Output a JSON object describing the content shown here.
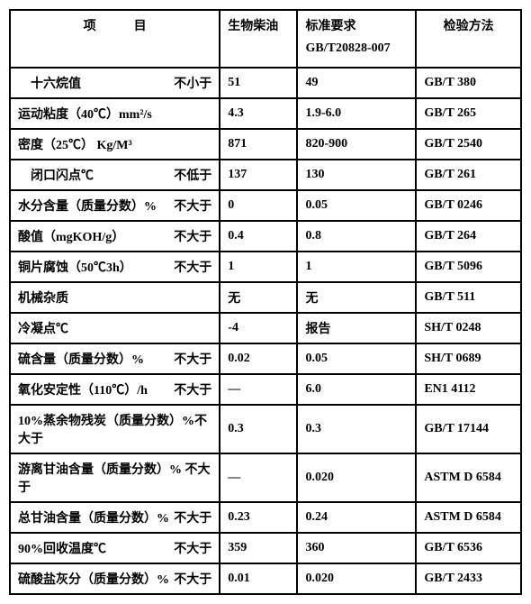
{
  "header": {
    "col1": "项　　　目",
    "col2": "生物柴油",
    "col3_line1": "标准要求",
    "col3_line2": "GB/T20828-007",
    "col4": "检验方法"
  },
  "rows": [
    {
      "name_left": "　十六烷值",
      "name_right": "不小于",
      "bio": "51",
      "std": "49",
      "method": "GB/T 380"
    },
    {
      "name_left": "运动粘度（40℃）mm²/s",
      "name_right": "",
      "bio": "4.3",
      "std": "1.9-6.0",
      "method": "GB/T 265"
    },
    {
      "name_left": " 密度（25℃） Kg/M³",
      "name_right": "",
      "bio": "871",
      "std": "820-900",
      "method": "GB/T 2540"
    },
    {
      "name_left": "　闭口闪点℃",
      "name_right": "不低于",
      "bio": "137",
      "std": "130",
      "method": "GB/T 261"
    },
    {
      "name_left": "水分含量（质量分数）%",
      "name_right": "不大于",
      "bio": "0",
      "std": "0.05",
      "method": "GB/T 0246"
    },
    {
      "name_left": "酸值（mgKOH/g）",
      "name_right": "不大于",
      "bio": "0.4",
      "std": "0.8",
      "method": "GB/T 264"
    },
    {
      "name_left": "铜片腐蚀（50℃3h）",
      "name_right": "不大于",
      "bio": "1",
      "std": "1",
      "method": "GB/T 5096"
    },
    {
      "name_left": "机械杂质",
      "name_right": "",
      "bio": "无",
      "std": "无",
      "method": "GB/T 511"
    },
    {
      "name_left": "冷凝点℃",
      "name_right": "",
      "bio": "-4",
      "std": "报告",
      "method": "SH/T 0248"
    },
    {
      "name_left": "硫含量（质量分数）%",
      "name_right": "不大于",
      "bio": "0.02",
      "std": "0.05",
      "method": "SH/T 0689"
    },
    {
      "name_left": "氧化安定性（110℃）/h",
      "name_right": "不大于",
      "bio": "—",
      "std": "6.0",
      "method": "EN1 4112"
    },
    {
      "name_left": "10%蒸余物残炭（质量分数）%不大于",
      "name_right": "",
      "bio": "0.3",
      "std": "0.3",
      "method": "GB/T 17144"
    },
    {
      "name_left": "游离甘油含量（质量分数）% 不大于",
      "name_right": "",
      "bio": "—",
      "std": "0.020",
      "method": "ASTM D 6584"
    },
    {
      "name_left": "总甘油含量（质量分数）%",
      "name_right": "不大于",
      "bio": "0.23",
      "std": "0.24",
      "method": "ASTM D 6584"
    },
    {
      "name_left": "90%回收温度℃",
      "name_right": "不大于",
      "bio": "359",
      "std": "360",
      "method": "GB/T 6536"
    },
    {
      "name_left": "硫酸盐灰分（质量分数）%",
      "name_right": "不大于",
      "bio": "0.01",
      "std": "0.020",
      "method": "GB/T 2433"
    }
  ]
}
